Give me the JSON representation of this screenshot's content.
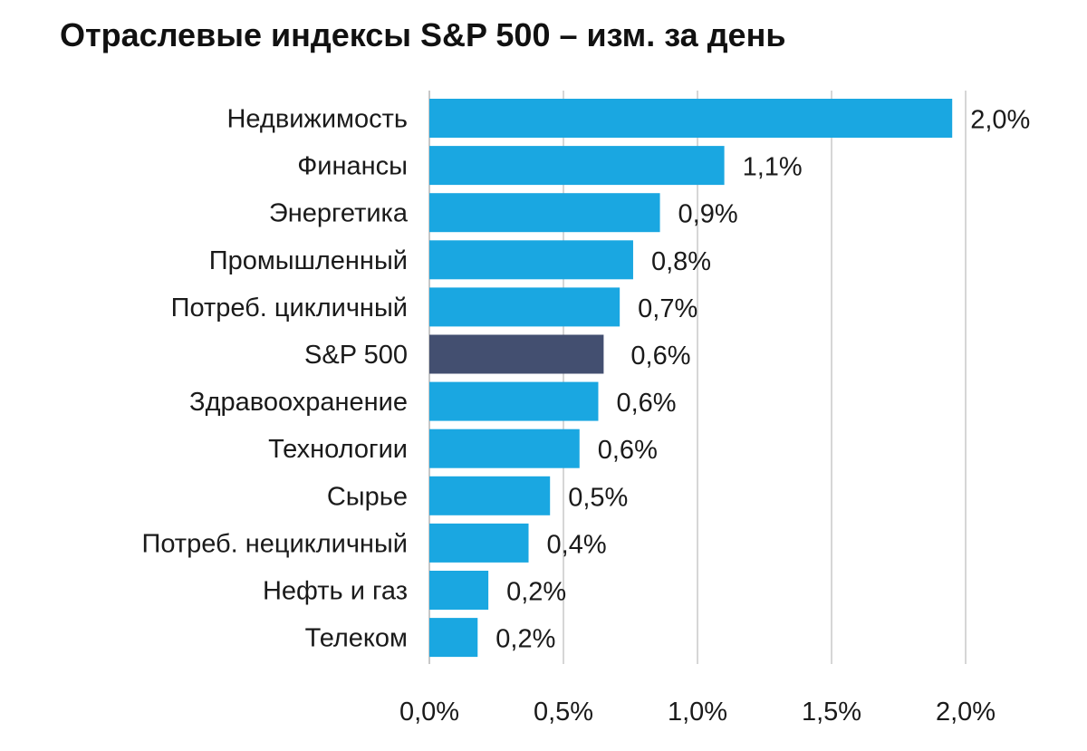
{
  "chart_data": {
    "type": "bar",
    "orientation": "horizontal",
    "title": "Отраслевые индексы S&P 500 – изм. за день",
    "xlabel": "",
    "ylabel": "",
    "xlim": [
      0,
      2.0
    ],
    "grid": true,
    "categories": [
      "Недвижимость",
      "Финансы",
      "Энергетика",
      "Промышленный",
      "Потреб. цикличный",
      "S&P 500",
      "Здравоохранение",
      "Технологии",
      "Сырье",
      "Потреб. нецикличный",
      "Нефть и газ",
      "Телеком"
    ],
    "values": [
      1.95,
      1.1,
      0.86,
      0.76,
      0.71,
      0.65,
      0.63,
      0.56,
      0.45,
      0.37,
      0.22,
      0.18
    ],
    "value_labels": [
      "2,0%",
      "1,1%",
      "0,9%",
      "0,8%",
      "0,7%",
      "0,6%",
      "0,6%",
      "0,6%",
      "0,5%",
      "0,4%",
      "0,2%",
      "0,2%"
    ],
    "ticks": [
      0,
      0.5,
      1.0,
      1.5,
      2.0
    ],
    "tick_labels": [
      "0,0%",
      "0,5%",
      "1,0%",
      "1,5%",
      "2,0%"
    ],
    "highlight_category": "S&P 500",
    "colors": {
      "bar": "#1aa7e1",
      "highlight": "#434f70",
      "grid": "#d6d6d6"
    }
  }
}
